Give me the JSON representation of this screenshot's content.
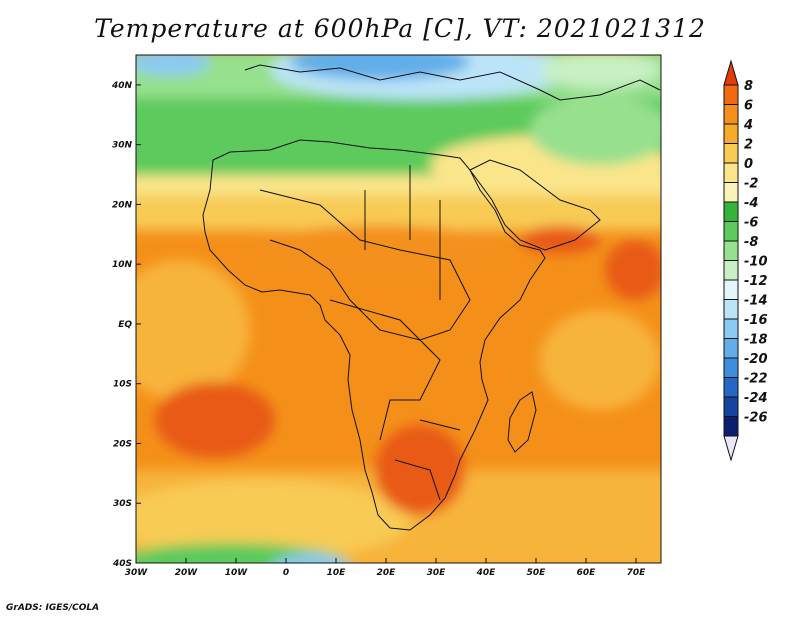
{
  "title": "Temperature at 600hPa [C], VT: 2021021312",
  "credit": "GrADS: IGES/COLA",
  "map": {
    "lon_range": [
      -30,
      75
    ],
    "lat_range": [
      -40,
      45
    ],
    "lon_ticks": [
      "30W",
      "20W",
      "10W",
      "0",
      "10E",
      "20E",
      "30E",
      "40E",
      "50E",
      "60E",
      "70E"
    ],
    "lat_ticks": [
      "40N",
      "30N",
      "20N",
      "10N",
      "EQ",
      "10S",
      "20S",
      "30S",
      "40S"
    ]
  },
  "colorbar": {
    "labels": [
      "8",
      "6",
      "4",
      "2",
      "0",
      "-2",
      "-4",
      "-6",
      "-8",
      "-10",
      "-12",
      "-14",
      "-16",
      "-18",
      "-20",
      "-22",
      "-24",
      "-26"
    ],
    "colors": [
      "#e23b08",
      "#f26a10",
      "#f4901a",
      "#f6ab2a",
      "#f8cb55",
      "#fae58a",
      "#fbf4b8",
      "#34b53a",
      "#5cca5c",
      "#96e08e",
      "#c8f0c4",
      "#e2f6fa",
      "#bce4f8",
      "#8ccaf2",
      "#62aee8",
      "#3d8ede",
      "#2468c4",
      "#1544a0",
      "#0a1f6e"
    ]
  },
  "colors": {
    "warm_high": "#e85a14",
    "warm": "#f4901a",
    "mild": "#f7b43a",
    "cool": "#fae58a",
    "green": "#5cca5c",
    "blue": "#62aee8"
  }
}
